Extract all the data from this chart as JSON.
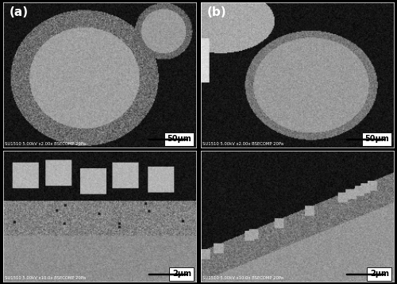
{
  "figure_width": 5.0,
  "figure_height": 3.58,
  "dpi": 100,
  "bg_color": "#000000",
  "label_a": "(a)",
  "label_b": "(b)",
  "scale_top": "50μm",
  "scale_bottom": "2μm",
  "meta_top": "SU1510 5.00kV x2.00x BSECOMP 20Pa",
  "meta_bottom": "SU1510 5.00kV x10.0x BSECOMP 20Pa",
  "border_color": "#ffffff"
}
